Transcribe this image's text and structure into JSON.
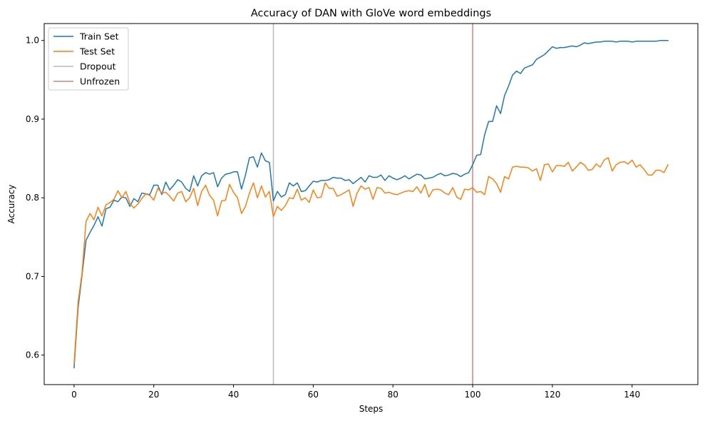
{
  "chart_data": {
    "type": "line",
    "title": "Accuracy of DAN with GloVe word embeddings",
    "xlabel": "Steps",
    "ylabel": "Accuracy",
    "xlim": [
      -7.5,
      156.5
    ],
    "ylim": [
      0.5625,
      1.0215
    ],
    "xticks": [
      0,
      20,
      40,
      60,
      80,
      100,
      120,
      140
    ],
    "yticks": [
      0.6,
      0.7,
      0.8,
      0.9,
      1.0
    ],
    "ytick_labels": [
      "0.6",
      "0.7",
      "0.8",
      "0.9",
      "1.0"
    ],
    "grid": false,
    "legend_position": "top-left",
    "series": [
      {
        "name": "Train Set",
        "color": "#1f77b4",
        "values": [
          0.584,
          0.66,
          0.702,
          0.746,
          0.756,
          0.765,
          0.776,
          0.764,
          0.786,
          0.788,
          0.797,
          0.795,
          0.801,
          0.8,
          0.789,
          0.799,
          0.795,
          0.806,
          0.805,
          0.804,
          0.816,
          0.816,
          0.804,
          0.82,
          0.81,
          0.816,
          0.823,
          0.82,
          0.812,
          0.808,
          0.828,
          0.815,
          0.828,
          0.832,
          0.83,
          0.832,
          0.814,
          0.825,
          0.83,
          0.831,
          0.833,
          0.833,
          0.811,
          0.829,
          0.851,
          0.852,
          0.839,
          0.857,
          0.847,
          0.845,
          0.796,
          0.808,
          0.801,
          0.804,
          0.819,
          0.815,
          0.819,
          0.808,
          0.809,
          0.815,
          0.821,
          0.82,
          0.822,
          0.822,
          0.823,
          0.826,
          0.825,
          0.825,
          0.822,
          0.823,
          0.818,
          0.822,
          0.826,
          0.82,
          0.828,
          0.826,
          0.826,
          0.829,
          0.822,
          0.828,
          0.825,
          0.823,
          0.825,
          0.828,
          0.824,
          0.827,
          0.83,
          0.829,
          0.824,
          0.825,
          0.826,
          0.829,
          0.831,
          0.828,
          0.829,
          0.831,
          0.83,
          0.827,
          0.83,
          0.832,
          0.842,
          0.854,
          0.855,
          0.88,
          0.897,
          0.897,
          0.917,
          0.907,
          0.93,
          0.942,
          0.956,
          0.961,
          0.958,
          0.965,
          0.967,
          0.969,
          0.976,
          0.979,
          0.982,
          0.987,
          0.992,
          0.99,
          0.991,
          0.991,
          0.992,
          0.993,
          0.992,
          0.994,
          0.997,
          0.996,
          0.997,
          0.998,
          0.998,
          0.999,
          0.999,
          0.999,
          0.998,
          0.999,
          0.999,
          0.999,
          0.998,
          0.999,
          0.999,
          0.999,
          0.999,
          0.999,
          0.999,
          1.0,
          1.0,
          1.0
        ]
      },
      {
        "name": "Test Set",
        "color": "#ff7f0e",
        "values": [
          0.589,
          0.667,
          0.705,
          0.77,
          0.78,
          0.772,
          0.788,
          0.777,
          0.791,
          0.794,
          0.798,
          0.809,
          0.8,
          0.808,
          0.793,
          0.787,
          0.792,
          0.799,
          0.805,
          0.803,
          0.797,
          0.812,
          0.806,
          0.807,
          0.802,
          0.796,
          0.806,
          0.808,
          0.795,
          0.8,
          0.812,
          0.79,
          0.808,
          0.816,
          0.803,
          0.797,
          0.777,
          0.796,
          0.797,
          0.817,
          0.807,
          0.8,
          0.78,
          0.789,
          0.806,
          0.819,
          0.8,
          0.815,
          0.801,
          0.808,
          0.776,
          0.789,
          0.784,
          0.79,
          0.8,
          0.799,
          0.811,
          0.797,
          0.8,
          0.794,
          0.81,
          0.8,
          0.801,
          0.819,
          0.812,
          0.812,
          0.802,
          0.804,
          0.807,
          0.81,
          0.789,
          0.806,
          0.815,
          0.811,
          0.813,
          0.798,
          0.813,
          0.812,
          0.806,
          0.807,
          0.805,
          0.804,
          0.806,
          0.808,
          0.809,
          0.808,
          0.814,
          0.806,
          0.817,
          0.801,
          0.81,
          0.811,
          0.81,
          0.806,
          0.804,
          0.813,
          0.801,
          0.798,
          0.811,
          0.81,
          0.813,
          0.807,
          0.808,
          0.804,
          0.827,
          0.824,
          0.818,
          0.807,
          0.827,
          0.824,
          0.839,
          0.84,
          0.839,
          0.839,
          0.838,
          0.834,
          0.837,
          0.822,
          0.842,
          0.843,
          0.833,
          0.841,
          0.841,
          0.84,
          0.845,
          0.834,
          0.839,
          0.845,
          0.842,
          0.835,
          0.836,
          0.843,
          0.839,
          0.848,
          0.851,
          0.834,
          0.842,
          0.845,
          0.846,
          0.843,
          0.848,
          0.839,
          0.842,
          0.836,
          0.829,
          0.829,
          0.835,
          0.835,
          0.832,
          0.842
        ]
      }
    ],
    "vlines": [
      {
        "name": "Dropout",
        "x": 50,
        "color": "#b9b9b9"
      },
      {
        "name": "Unfrozen",
        "x": 100,
        "color": "#c9877a"
      }
    ]
  }
}
